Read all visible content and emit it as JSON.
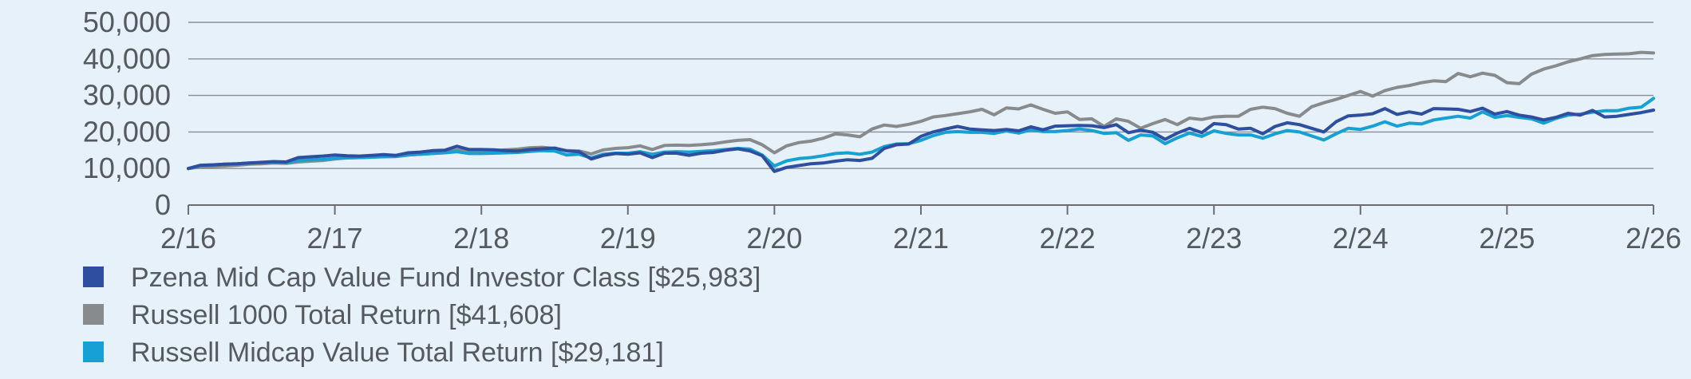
{
  "chart_data": {
    "type": "line",
    "ylim": [
      0,
      50000
    ],
    "yticks": [
      "0",
      "10,000",
      "20,000",
      "30,000",
      "40,000",
      "50,000"
    ],
    "ytick_values": [
      0,
      10000,
      20000,
      30000,
      40000,
      50000
    ],
    "xticks": [
      "2/16",
      "2/17",
      "2/18",
      "2/19",
      "2/20",
      "2/21",
      "2/22",
      "2/23",
      "2/24",
      "2/25",
      "2/26"
    ],
    "grid": true,
    "legend_position": "bottom",
    "x_start_label": "2/16",
    "x_end_label": "2/26",
    "series": [
      {
        "name": "Pzena Mid Cap Value Fund Investor Class [$25,983]",
        "color": "#2e4fa0",
        "values": [
          10000,
          10900,
          11000,
          11200,
          11300,
          11500,
          11700,
          11900,
          11800,
          13000,
          13200,
          13400,
          13700,
          13500,
          13400,
          13600,
          13800,
          13600,
          14300,
          14500,
          14900,
          15000,
          16100,
          15200,
          15200,
          15100,
          14900,
          14800,
          15200,
          15400,
          15600,
          14800,
          14600,
          12600,
          13600,
          14100,
          13900,
          14300,
          13000,
          14200,
          14200,
          13600,
          14200,
          14400,
          15000,
          15400,
          14800,
          13500,
          9200,
          10300,
          10800,
          11300,
          11500,
          12000,
          12400,
          12200,
          12800,
          15500,
          16500,
          16700,
          18800,
          20000,
          20800,
          21500,
          20800,
          20600,
          20400,
          20700,
          20300,
          21400,
          20600,
          21600,
          21700,
          21800,
          21700,
          21200,
          22000,
          19800,
          20500,
          19900,
          18000,
          19700,
          21000,
          19800,
          22300,
          22000,
          20800,
          21000,
          19500,
          21500,
          22500,
          22000,
          21000,
          20000,
          22800,
          24400,
          24600,
          25000,
          26400,
          24800,
          25500,
          24900,
          26400,
          26300,
          26200,
          25600,
          26500,
          24900,
          25600,
          24600,
          24100,
          23300,
          24000,
          25100,
          24600,
          25900,
          24100,
          24300,
          24800,
          25300,
          25983
        ]
      },
      {
        "name": "Russell 1000 Total Return [$41,608]",
        "color": "#888b8d",
        "values": [
          10000,
          10400,
          10600,
          10700,
          10900,
          11200,
          11300,
          11500,
          11400,
          11800,
          12000,
          12200,
          12600,
          12900,
          13000,
          13100,
          13300,
          13300,
          13700,
          13900,
          14100,
          14400,
          15100,
          14600,
          14700,
          14800,
          15100,
          15300,
          15700,
          15800,
          15500,
          14900,
          14800,
          14000,
          15100,
          15500,
          15700,
          16200,
          15200,
          16300,
          16400,
          16300,
          16500,
          16800,
          17300,
          17700,
          17900,
          16500,
          14300,
          16200,
          17100,
          17500,
          18300,
          19500,
          19200,
          18700,
          20800,
          21900,
          21500,
          22100,
          22900,
          24100,
          24500,
          25000,
          25500,
          26200,
          24700,
          26600,
          26300,
          27400,
          26200,
          25100,
          25500,
          23400,
          23600,
          21500,
          23600,
          22900,
          21000,
          22300,
          23400,
          22000,
          23800,
          23400,
          24100,
          24300,
          24300,
          26200,
          26800,
          26400,
          25100,
          24300,
          26900,
          28000,
          28900,
          30000,
          31100,
          29800,
          31300,
          32200,
          32700,
          33500,
          34000,
          33800,
          36000,
          35100,
          36100,
          35500,
          33500,
          33200,
          35800,
          37200,
          38100,
          39200,
          40000,
          40900,
          41200,
          41300,
          41400,
          41800,
          41608
        ]
      },
      {
        "name": "Russell Midcap Value Total Return [$29,181]",
        "color": "#16a0d3",
        "values": [
          10000,
          10800,
          11000,
          11200,
          11300,
          11500,
          11600,
          11700,
          11600,
          12200,
          12400,
          12500,
          12800,
          12900,
          13000,
          13100,
          13200,
          13300,
          13700,
          13900,
          14100,
          14300,
          14600,
          14100,
          14100,
          14200,
          14300,
          14400,
          14700,
          14900,
          14800,
          13700,
          13900,
          12900,
          13900,
          14200,
          14200,
          14600,
          13900,
          14500,
          14600,
          14500,
          14700,
          14900,
          15200,
          15500,
          15300,
          13700,
          10700,
          12100,
          12700,
          13000,
          13500,
          14100,
          14300,
          13900,
          14500,
          16000,
          16700,
          16800,
          17700,
          19000,
          19900,
          20100,
          19900,
          19900,
          19600,
          20300,
          19700,
          20600,
          20100,
          20100,
          20400,
          20800,
          20400,
          19600,
          19800,
          17700,
          19200,
          18900,
          16800,
          18400,
          19700,
          18800,
          20300,
          19600,
          19200,
          19200,
          18300,
          19500,
          20400,
          20000,
          18900,
          17800,
          19500,
          21000,
          20700,
          21600,
          22800,
          21600,
          22400,
          22200,
          23300,
          23800,
          24300,
          23800,
          25500,
          24000,
          24500,
          24000,
          23600,
          22400,
          23700,
          24600,
          24900,
          25400,
          25800,
          25800,
          26500,
          26800,
          29181
        ]
      }
    ]
  }
}
